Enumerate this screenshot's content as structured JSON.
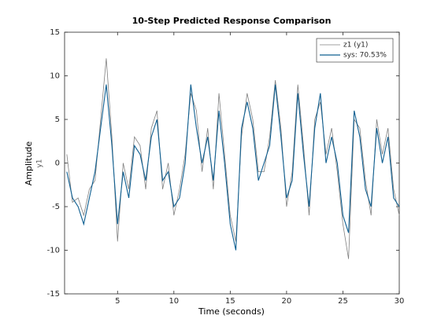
{
  "chart_data": {
    "type": "line",
    "title": "10-Step Predicted Response Comparison",
    "xlabel": "Time (seconds)",
    "ylabel": "Amplitude",
    "ylabel_sub": "y1",
    "x": [
      0.5,
      1,
      1.5,
      2,
      2.5,
      3,
      3.5,
      4,
      4.5,
      5,
      5.5,
      6,
      6.5,
      7,
      7.5,
      8,
      8.5,
      9,
      9.5,
      10,
      10.5,
      11,
      11.5,
      12,
      12.5,
      13,
      13.5,
      14,
      14.5,
      15,
      15.5,
      16,
      16.5,
      17,
      17.5,
      18,
      18.5,
      19,
      19.5,
      20,
      20.5,
      21,
      21.5,
      22,
      22.5,
      23,
      23.5,
      24,
      24.5,
      25,
      25.5,
      26,
      26.5,
      27,
      27.5,
      28,
      28.5,
      29,
      29.5,
      30
    ],
    "series": [
      {
        "name": "z1 (y1)",
        "color": "#808080",
        "values": [
          1,
          -4.5,
          -4,
          -6,
          -3,
          -2,
          5,
          12,
          3,
          -9,
          0,
          -3,
          3,
          2,
          -3,
          4,
          6,
          -3,
          0,
          -6,
          -3,
          1,
          8,
          6,
          -1,
          4,
          -3,
          8,
          1,
          -6,
          -9,
          3,
          8,
          5,
          -1,
          -1,
          3,
          9.5,
          4,
          -5,
          -1,
          9,
          2,
          -6,
          5,
          7,
          1,
          4,
          -1,
          -7,
          -11,
          5,
          4,
          -2,
          -6,
          5,
          1,
          4,
          -3,
          -6
        ]
      },
      {
        "name": "sys: 70.53%",
        "color": "#0f5f91",
        "values": [
          -1,
          -4,
          -5,
          -7,
          -4,
          -1,
          4,
          9,
          2,
          -7,
          -1,
          -4,
          2,
          1,
          -2,
          3,
          5,
          -2,
          -1,
          -5,
          -4,
          0,
          9,
          4,
          0,
          3,
          -2,
          6,
          0,
          -7,
          -10,
          4,
          7,
          4,
          -2,
          0,
          2,
          9,
          3,
          -4,
          -2,
          8,
          1,
          -5,
          4,
          8,
          0,
          3,
          0,
          -6,
          -8,
          6,
          3,
          -3,
          -5,
          4,
          0,
          3,
          -4,
          -5
        ]
      }
    ],
    "xlim": [
      0.3,
      30
    ],
    "xticks": [
      5,
      10,
      15,
      20,
      25,
      30
    ],
    "ylim": [
      -15,
      15
    ],
    "yticks": [
      -15,
      -10,
      -5,
      0,
      5,
      10,
      15
    ],
    "legend": "top-right"
  }
}
